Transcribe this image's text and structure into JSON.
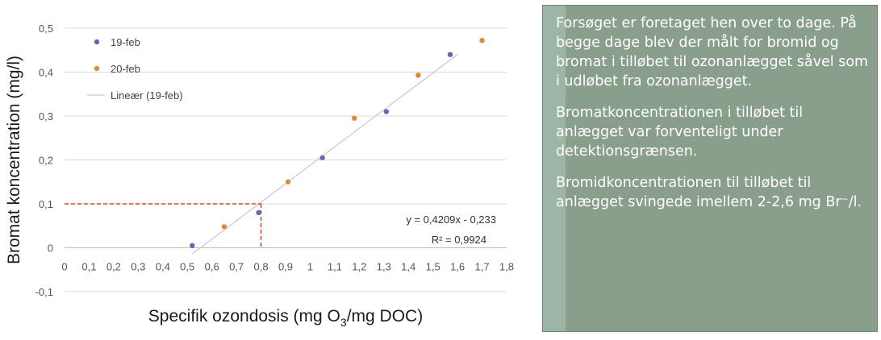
{
  "chart_data": {
    "type": "scatter",
    "ylabel": "Bromat koncentration (mg/l)",
    "xlabel_parts": [
      "Specifik ozondosis (mg O",
      "3",
      "/mg DOC)"
    ],
    "xlim": [
      0,
      1.8
    ],
    "ylim": [
      -0.1,
      0.5
    ],
    "x_ticks": [
      0,
      0.1,
      0.2,
      0.3,
      0.4,
      0.5,
      0.6,
      0.7,
      0.8,
      0.9,
      1,
      1.1,
      1.2,
      1.3,
      1.4,
      1.5,
      1.6,
      1.7,
      1.8
    ],
    "x_tick_labels": [
      "0",
      "0,1",
      "0,2",
      "0,3",
      "0,4",
      "0,5",
      "0,6",
      "0,7",
      "0,8",
      "0,9",
      "1",
      "1,1",
      "1,2",
      "1,3",
      "1,4",
      "1,5",
      "1,6",
      "1,7",
      "1,8"
    ],
    "y_ticks": [
      -0.1,
      0,
      0.1,
      0.2,
      0.3,
      0.4,
      0.5
    ],
    "y_tick_labels": [
      "-0,1",
      "0",
      "0,1",
      "0,2",
      "0,3",
      "0,4",
      "0,5"
    ],
    "grid": "horizontal",
    "legend_position": "top-left",
    "series": [
      {
        "name": "19-feb",
        "color": "#5b6bb7",
        "points": [
          [
            0.52,
            0.005
          ],
          [
            0.79,
            0.08
          ],
          [
            1.05,
            0.205
          ],
          [
            1.31,
            0.31
          ],
          [
            1.57,
            0.44
          ]
        ]
      },
      {
        "name": "20-feb",
        "color": "#e0883a",
        "points": [
          [
            0.65,
            0.048
          ],
          [
            0.91,
            0.15
          ],
          [
            1.18,
            0.295
          ],
          [
            1.44,
            0.393
          ],
          [
            1.7,
            0.472
          ]
        ]
      }
    ],
    "trendline": {
      "name": "Lineær (19-feb)",
      "color": "#c8cbd6",
      "slope": 0.4209,
      "intercept": -0.233,
      "x_range": [
        0.52,
        1.6
      ],
      "equation": "y = 0,4209x - 0,233",
      "r2": "R² = 0,9924"
    },
    "reference": {
      "x": 0.8,
      "y": 0.1,
      "color": "#d0432c"
    }
  },
  "info_box": {
    "paragraphs": [
      "Forsøget er foretaget hen over to dage. På begge dage blev der målt for bromid og bromat i tilløbet til ozonanlægget såvel som i udløbet fra ozonanlægget.",
      "Bromatkoncentrationen i tilløbet til anlægget var forventeligt under detektionsgrænsen.",
      "Bromidkoncentrationen til tilløbet til anlægget svingede imellem 2-2,6 mg Br⁻/l."
    ],
    "bg_color": "#8a9e8c"
  }
}
